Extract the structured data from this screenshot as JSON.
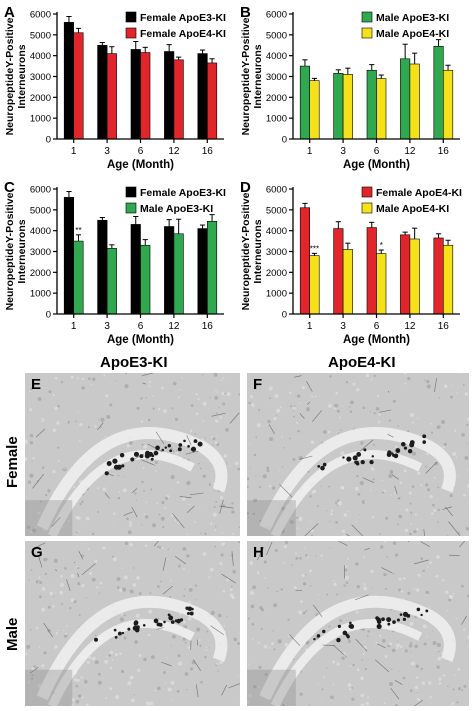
{
  "chart_data": [
    {
      "type": "bar",
      "panel": "A",
      "categories": [
        "1",
        "3",
        "6",
        "12",
        "16"
      ],
      "xlabel": "Age (Month)",
      "ylabel": "NeuropeptideY-Positive Interneurons",
      "ylim": [
        0,
        6000
      ],
      "yticks": [
        0,
        1000,
        2000,
        3000,
        4000,
        5000,
        6000
      ],
      "legend": "top-right",
      "series": [
        {
          "name": "Female ApoE3-KI",
          "color": "#000000",
          "values": [
            5600,
            4500,
            4300,
            4200,
            4100
          ],
          "errors": [
            280,
            130,
            380,
            330,
            170
          ]
        },
        {
          "name": "Female ApoE4-KI",
          "color": "#e0262a",
          "values": [
            5100,
            4100,
            4150,
            3800,
            3650
          ],
          "errors": [
            210,
            330,
            250,
            130,
            200
          ]
        }
      ],
      "annotations": []
    },
    {
      "type": "bar",
      "panel": "B",
      "categories": [
        "1",
        "3",
        "6",
        "12",
        "16"
      ],
      "xlabel": "Age (Month)",
      "ylabel": "NeuropeptideY-Positive Interneurons",
      "ylim": [
        0,
        6000
      ],
      "yticks": [
        0,
        1000,
        2000,
        3000,
        4000,
        5000,
        6000
      ],
      "legend": "top-right",
      "series": [
        {
          "name": "Male ApoE3-KI",
          "color": "#2fa84f",
          "values": [
            3500,
            3150,
            3300,
            3850,
            4450
          ],
          "errors": [
            300,
            170,
            270,
            700,
            320
          ]
        },
        {
          "name": "Male ApoE4-KI",
          "color": "#f5e11a",
          "values": [
            2800,
            3100,
            2900,
            3600,
            3300
          ],
          "errors": [
            110,
            300,
            170,
            520,
            240
          ]
        }
      ],
      "annotations": []
    },
    {
      "type": "bar",
      "panel": "C",
      "categories": [
        "1",
        "3",
        "6",
        "12",
        "16"
      ],
      "xlabel": "Age (Month)",
      "ylabel": "NeuropeptideY-Positive Interneurons",
      "ylim": [
        0,
        6000
      ],
      "yticks": [
        0,
        1000,
        2000,
        3000,
        4000,
        5000,
        6000
      ],
      "legend": "top-right",
      "series": [
        {
          "name": "Female ApoE3-KI",
          "color": "#000000",
          "values": [
            5600,
            4500,
            4300,
            4200,
            4100
          ],
          "errors": [
            280,
            130,
            380,
            330,
            170
          ]
        },
        {
          "name": "Male ApoE3-KI",
          "color": "#2fa84f",
          "values": [
            3500,
            3150,
            3300,
            3850,
            4450
          ],
          "errors": [
            300,
            170,
            270,
            700,
            320
          ]
        }
      ],
      "annotations": [
        {
          "category_index": 0,
          "series_index": 1,
          "text": "**"
        }
      ]
    },
    {
      "type": "bar",
      "panel": "D",
      "categories": [
        "1",
        "3",
        "6",
        "12",
        "16"
      ],
      "xlabel": "Age (Month)",
      "ylabel": "NeuropeptideY-Positive Interneurons",
      "ylim": [
        0,
        6000
      ],
      "yticks": [
        0,
        1000,
        2000,
        3000,
        4000,
        5000,
        6000
      ],
      "legend": "top-right",
      "series": [
        {
          "name": "Female ApoE4-KI",
          "color": "#e0262a",
          "values": [
            5100,
            4100,
            4150,
            3800,
            3650
          ],
          "errors": [
            210,
            330,
            250,
            130,
            200
          ]
        },
        {
          "name": "Male ApoE4-KI",
          "color": "#f5e11a",
          "values": [
            2800,
            3100,
            2900,
            3600,
            3300
          ],
          "errors": [
            110,
            300,
            170,
            520,
            240
          ]
        }
      ],
      "annotations": [
        {
          "category_index": 0,
          "series_index": 1,
          "text": "***"
        },
        {
          "category_index": 2,
          "series_index": 1,
          "text": "*"
        }
      ]
    }
  ],
  "micrographs": {
    "column_labels": [
      "ApoE3-KI",
      "ApoE4-KI"
    ],
    "row_labels": [
      "Female",
      "Male"
    ],
    "panels": [
      {
        "letter": "E"
      },
      {
        "letter": "F"
      },
      {
        "letter": "G"
      },
      {
        "letter": "H"
      }
    ]
  }
}
